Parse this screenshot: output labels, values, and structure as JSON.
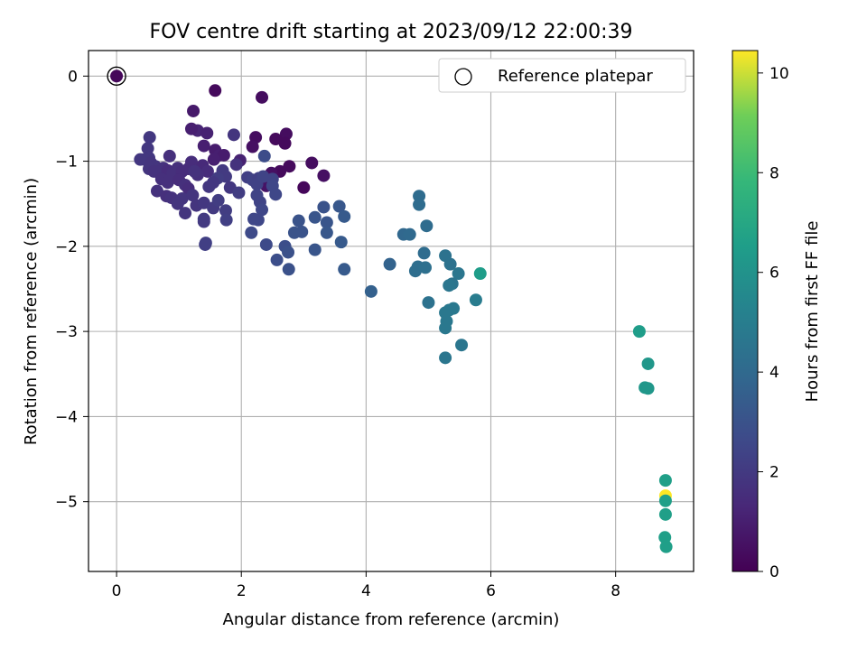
{
  "chart_data": {
    "type": "scatter",
    "title": "FOV centre drift starting at 2023/09/12 22:00:39",
    "xlabel": "Angular distance from reference (arcmin)",
    "ylabel": "Rotation from reference (arcmin)",
    "xlim": [
      -0.45,
      9.25
    ],
    "ylim": [
      -5.82,
      0.3
    ],
    "xticks": [
      0,
      2,
      4,
      6,
      8
    ],
    "yticks": [
      0,
      -1,
      -2,
      -3,
      -4,
      -5
    ],
    "grid": true,
    "legend": {
      "position": "top-right",
      "entries": [
        "Reference platepar"
      ]
    },
    "reference_point": {
      "x": 0,
      "y": 0
    },
    "colorbar": {
      "label": "Hours from first FF file",
      "range": [
        0,
        10.45
      ],
      "ticks": [
        0,
        2,
        4,
        6,
        8,
        10
      ],
      "colormap": "viridis"
    },
    "points": [
      [
        0.0,
        0.0,
        0.2
      ],
      [
        1.58,
        -0.17,
        0.3
      ],
      [
        2.33,
        -0.25,
        0.4
      ],
      [
        2.23,
        -0.72,
        0.4
      ],
      [
        2.72,
        -0.68,
        0.4
      ],
      [
        2.7,
        -0.79,
        0.3
      ],
      [
        2.55,
        -0.74,
        0.3
      ],
      [
        2.18,
        -0.83,
        0.5
      ],
      [
        2.77,
        -1.06,
        0.3
      ],
      [
        3.13,
        -1.02,
        0.4
      ],
      [
        3.32,
        -1.17,
        0.5
      ],
      [
        2.62,
        -1.12,
        0.3
      ],
      [
        2.48,
        -1.14,
        0.5
      ],
      [
        2.4,
        -1.29,
        0.6
      ],
      [
        3.0,
        -1.31,
        0.2
      ],
      [
        1.23,
        -0.41,
        0.8
      ],
      [
        1.3,
        -0.64,
        1.2
      ],
      [
        1.45,
        -0.67,
        1.1
      ],
      [
        1.2,
        -0.62,
        1.0
      ],
      [
        1.4,
        -0.82,
        1.0
      ],
      [
        1.58,
        -0.87,
        0.9
      ],
      [
        1.65,
        -0.93,
        1.0
      ],
      [
        1.72,
        -0.93,
        0.9
      ],
      [
        1.56,
        -0.98,
        1.0
      ],
      [
        1.88,
        -0.69,
        1.8
      ],
      [
        1.98,
        -0.99,
        1.1
      ],
      [
        1.92,
        -1.04,
        1.7
      ],
      [
        0.53,
        -0.72,
        1.9
      ],
      [
        0.5,
        -0.85,
        1.9
      ],
      [
        0.52,
        -0.96,
        1.9
      ],
      [
        0.45,
        -0.98,
        1.9
      ],
      [
        0.38,
        -0.98,
        1.9
      ],
      [
        0.55,
        -1.02,
        1.8
      ],
      [
        0.62,
        -1.06,
        1.8
      ],
      [
        0.52,
        -1.09,
        1.8
      ],
      [
        0.6,
        -1.12,
        1.7
      ],
      [
        0.75,
        -1.08,
        1.7
      ],
      [
        0.82,
        -1.11,
        1.5
      ],
      [
        0.9,
        -1.14,
        1.6
      ],
      [
        0.98,
        -1.08,
        1.6
      ],
      [
        1.05,
        -1.12,
        1.5
      ],
      [
        1.15,
        -1.09,
        1.5
      ],
      [
        1.2,
        -1.01,
        1.5
      ],
      [
        1.38,
        -1.05,
        1.4
      ],
      [
        1.46,
        -1.12,
        1.5
      ],
      [
        1.3,
        -1.16,
        1.6
      ],
      [
        1.25,
        -1.12,
        1.7
      ],
      [
        1.7,
        -1.11,
        2.0
      ],
      [
        1.75,
        -1.18,
        2.0
      ],
      [
        1.62,
        -1.2,
        2.1
      ],
      [
        1.55,
        -1.25,
        1.9
      ],
      [
        1.48,
        -1.3,
        1.9
      ],
      [
        1.82,
        -1.31,
        1.9
      ],
      [
        1.96,
        -1.37,
        2.1
      ],
      [
        2.1,
        -1.19,
        2.2
      ],
      [
        2.18,
        -1.22,
        2.3
      ],
      [
        2.28,
        -1.2,
        2.2
      ],
      [
        2.25,
        -1.27,
        2.3
      ],
      [
        2.35,
        -1.18,
        2.4
      ],
      [
        2.5,
        -1.21,
        2.4
      ],
      [
        2.5,
        -1.29,
        2.5
      ],
      [
        2.55,
        -1.39,
        2.5
      ],
      [
        0.72,
        -1.21,
        1.6
      ],
      [
        0.82,
        -1.25,
        1.6
      ],
      [
        0.88,
        -1.2,
        1.6
      ],
      [
        0.85,
        -0.94,
        1.6
      ],
      [
        1.0,
        -1.22,
        1.5
      ],
      [
        1.1,
        -1.28,
        1.6
      ],
      [
        1.15,
        -1.32,
        1.5
      ],
      [
        0.65,
        -1.35,
        1.7
      ],
      [
        0.8,
        -1.41,
        1.6
      ],
      [
        0.88,
        -1.43,
        1.7
      ],
      [
        1.05,
        -1.44,
        1.8
      ],
      [
        0.98,
        -1.5,
        1.8
      ],
      [
        1.22,
        -1.4,
        1.8
      ],
      [
        1.28,
        -1.52,
        1.8
      ],
      [
        1.4,
        -1.49,
        1.9
      ],
      [
        1.55,
        -1.55,
        2.0
      ],
      [
        1.63,
        -1.46,
        2.1
      ],
      [
        1.75,
        -1.58,
        2.1
      ],
      [
        1.4,
        -1.68,
        2.0
      ],
      [
        1.4,
        -1.71,
        2.0
      ],
      [
        1.76,
        -1.69,
        2.2
      ],
      [
        1.1,
        -1.61,
        1.8
      ],
      [
        2.25,
        -1.4,
        2.4
      ],
      [
        2.3,
        -1.48,
        2.4
      ],
      [
        2.33,
        -1.57,
        2.5
      ],
      [
        2.27,
        -1.69,
        2.5
      ],
      [
        2.2,
        -1.68,
        2.5
      ],
      [
        2.16,
        -1.84,
        2.6
      ],
      [
        2.37,
        -0.94,
        2.7
      ],
      [
        1.42,
        -1.98,
        2.2
      ],
      [
        1.43,
        -1.96,
        2.2
      ],
      [
        2.4,
        -1.98,
        2.6
      ],
      [
        2.57,
        -2.16,
        2.8
      ],
      [
        2.7,
        -2.0,
        2.8
      ],
      [
        2.75,
        -2.07,
        2.9
      ],
      [
        2.76,
        -2.27,
        2.9
      ],
      [
        2.85,
        -1.84,
        3.0
      ],
      [
        2.92,
        -1.7,
        3.0
      ],
      [
        2.97,
        -1.83,
        3.0
      ],
      [
        3.18,
        -1.66,
        3.1
      ],
      [
        3.32,
        -1.54,
        3.0
      ],
      [
        3.37,
        -1.72,
        3.1
      ],
      [
        3.37,
        -1.84,
        3.2
      ],
      [
        3.57,
        -1.53,
        3.2
      ],
      [
        3.65,
        -1.65,
        3.3
      ],
      [
        3.18,
        -2.04,
        3.1
      ],
      [
        3.6,
        -1.95,
        3.3
      ],
      [
        3.65,
        -2.27,
        3.3
      ],
      [
        4.08,
        -2.53,
        3.6
      ],
      [
        4.38,
        -2.21,
        3.7
      ],
      [
        4.6,
        -1.86,
        3.9
      ],
      [
        4.7,
        -1.86,
        4.0
      ],
      [
        4.85,
        -1.41,
        4.1
      ],
      [
        4.85,
        -1.51,
        4.1
      ],
      [
        4.97,
        -1.76,
        4.1
      ],
      [
        4.93,
        -2.08,
        4.1
      ],
      [
        4.83,
        -2.24,
        4.2
      ],
      [
        4.79,
        -2.29,
        4.2
      ],
      [
        4.95,
        -2.25,
        4.3
      ],
      [
        5.0,
        -2.66,
        4.4
      ],
      [
        5.27,
        -2.11,
        4.4
      ],
      [
        5.35,
        -2.21,
        4.4
      ],
      [
        5.48,
        -2.32,
        4.6
      ],
      [
        5.38,
        -2.44,
        4.5
      ],
      [
        5.33,
        -2.46,
        4.6
      ],
      [
        5.4,
        -2.73,
        4.7
      ],
      [
        5.33,
        -2.75,
        4.7
      ],
      [
        5.27,
        -2.78,
        4.7
      ],
      [
        5.29,
        -2.88,
        4.7
      ],
      [
        5.27,
        -2.96,
        4.7
      ],
      [
        5.27,
        -3.31,
        4.6
      ],
      [
        5.53,
        -3.16,
        4.6
      ],
      [
        5.76,
        -2.63,
        4.9
      ],
      [
        5.83,
        -2.32,
        6.5
      ],
      [
        8.38,
        -3.0,
        6.5
      ],
      [
        8.52,
        -3.38,
        6.2
      ],
      [
        8.47,
        -3.66,
        6.2
      ],
      [
        8.52,
        -3.67,
        6.2
      ],
      [
        8.8,
        -4.75,
        6.6
      ],
      [
        8.8,
        -4.93,
        10.45
      ],
      [
        8.8,
        -4.99,
        6.6
      ],
      [
        8.8,
        -5.15,
        6.6
      ],
      [
        8.79,
        -5.42,
        6.6
      ],
      [
        8.81,
        -5.53,
        6.6
      ]
    ]
  }
}
